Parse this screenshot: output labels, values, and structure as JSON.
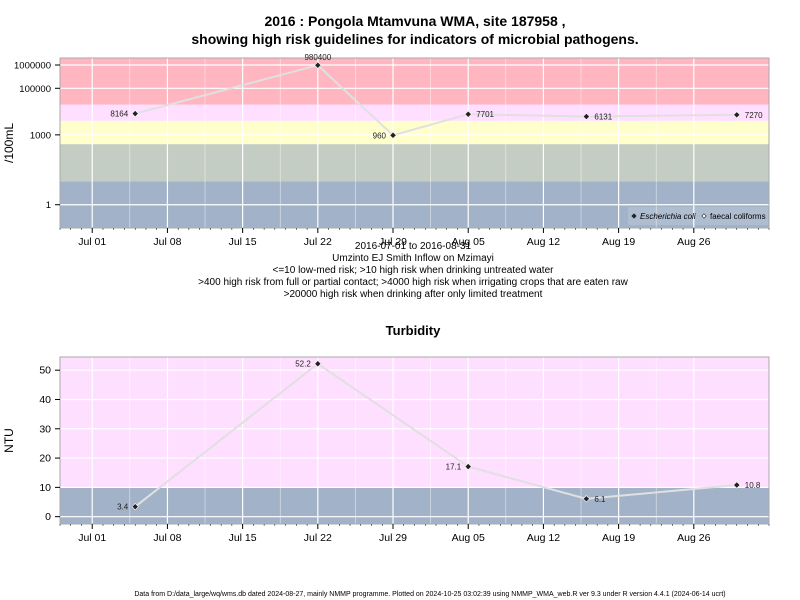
{
  "title_line1": "2016 : Pongola Mtamvuna WMA, site 187958 ,",
  "title_line2": "showing high risk guidelines for indicators of microbial pathogens.",
  "date_range": "2016-07-01 to 2016-08-31",
  "site_name": "Umzinto EJ Smith Inflow on Mzimayi",
  "notes": [
    "<=10 low-med risk; >10 high risk when drinking untreated water",
    ">400 high risk from full or partial contact; >4000 high risk when irrigating crops that are eaten raw",
    ">20000 high risk when drinking after only limited treatment"
  ],
  "footer": "Data from D:/data_large/wq/wms.db dated 2024-08-27, mainly NMMP programme. Plotted on 2024-10-25 03:02:39 using NMMP_WMA_web.R ver 9.3 under R version 4.4.1 (2024-06-14 ucrt)",
  "colors": {
    "red": "#ffb6c1",
    "pink": "#ffdfff",
    "yellow": "#ffffcc",
    "green": "#c3cdc3",
    "blue": "#a2b2c8",
    "line": "#e0e0e0"
  },
  "chart_data": [
    {
      "type": "line",
      "title": "",
      "ylabel": "/100mL",
      "yscale": "log",
      "ylim": [
        0.1,
        2000000
      ],
      "xlim": [
        "2016-06-28",
        "2016-09-02"
      ],
      "x_ticks": [
        "Jul 01",
        "Jul 08",
        "Jul 15",
        "Jul 22",
        "Jul 29",
        "Aug 05",
        "Aug 12",
        "Aug 19",
        "Aug 26"
      ],
      "y_ticks": [
        "1",
        "1000",
        "100000",
        "1000000"
      ],
      "bands": [
        {
          "from": 0.1,
          "to": 10,
          "color": "blue"
        },
        {
          "from": 10,
          "to": 400,
          "color": "green"
        },
        {
          "from": 400,
          "to": 4000,
          "color": "yellow"
        },
        {
          "from": 4000,
          "to": 20000,
          "color": "pink"
        },
        {
          "from": 20000,
          "to": 2000000,
          "color": "red"
        }
      ],
      "legend": [
        "Escherichia coli",
        "faecal coliforms"
      ],
      "legend_position": "bottom-right",
      "series": [
        {
          "name": "Escherichia coli",
          "points": [
            {
              "x": "2016-07-05",
              "y": 8164,
              "label": "8164"
            },
            {
              "x": "2016-07-22",
              "y": 980400,
              "label": "980400"
            },
            {
              "x": "2016-07-29",
              "y": 960,
              "label": "960"
            },
            {
              "x": "2016-08-05",
              "y": 7701,
              "label": "7701"
            },
            {
              "x": "2016-08-16",
              "y": 6131,
              "label": "6131"
            },
            {
              "x": "2016-08-30",
              "y": 7270,
              "label": "7270"
            }
          ]
        }
      ],
      "grid": true
    },
    {
      "type": "line",
      "title": "Turbidity",
      "ylabel": "NTU",
      "yscale": "linear",
      "ylim": [
        -2.5,
        54.5
      ],
      "xlim": [
        "2016-06-28",
        "2016-09-02"
      ],
      "x_ticks": [
        "Jul 01",
        "Jul 08",
        "Jul 15",
        "Jul 22",
        "Jul 29",
        "Aug 05",
        "Aug 12",
        "Aug 19",
        "Aug 26"
      ],
      "y_ticks": [
        "0",
        "10",
        "20",
        "30",
        "40",
        "50"
      ],
      "bands": [
        {
          "from": -2.5,
          "to": 10,
          "color": "blue"
        },
        {
          "from": 10,
          "to": 54.5,
          "color": "pink"
        }
      ],
      "series": [
        {
          "name": "",
          "points": [
            {
              "x": "2016-07-05",
              "y": 3.4,
              "label": "3.4"
            },
            {
              "x": "2016-07-22",
              "y": 52.2,
              "label": "52.2"
            },
            {
              "x": "2016-08-05",
              "y": 17.1,
              "label": "17.1"
            },
            {
              "x": "2016-08-16",
              "y": 6.1,
              "label": "6.1"
            },
            {
              "x": "2016-08-30",
              "y": 10.8,
              "label": "10.8"
            }
          ]
        }
      ],
      "grid": true
    }
  ]
}
